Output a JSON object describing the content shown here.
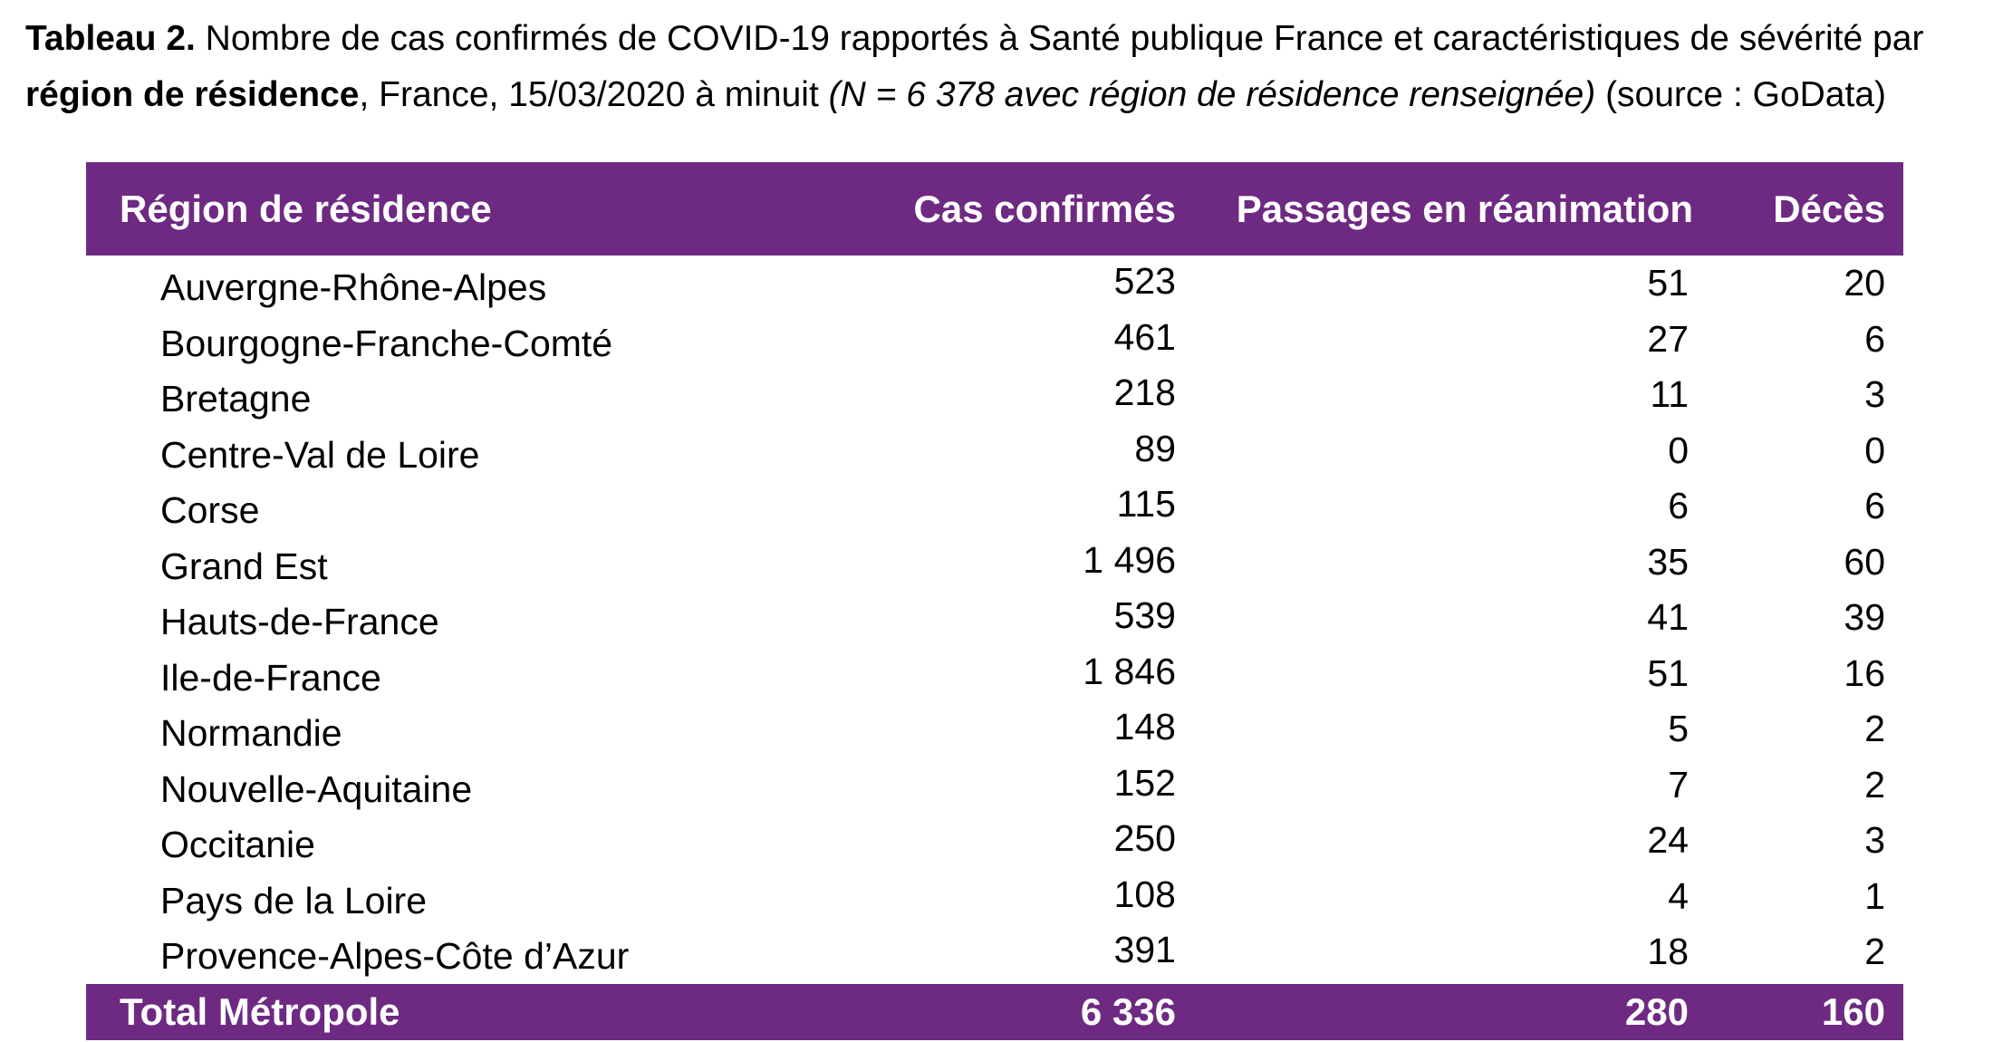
{
  "caption": {
    "label": "Tableau 2.",
    "line1_rest": " Nombre de cas confirmés de COVID-19 rapportés à Santé publique France et caractéristiques de sévérité par",
    "line2_bold": "région de résidence",
    "line2_plain": ", France, 15/03/2020 à minuit ",
    "line2_italic": "(N = 6 378 avec région de résidence renseignée)",
    "line2_source": " (source : GoData)"
  },
  "table": {
    "headers": {
      "region": "Région de résidence",
      "cas": "Cas confirmés",
      "rea": "Passages en réanimation",
      "deces": "Décès"
    },
    "rows": [
      {
        "region": "Auvergne-Rhône-Alpes",
        "cas": "523",
        "rea": "51",
        "deces": "20"
      },
      {
        "region": "Bourgogne-Franche-Comté",
        "cas": "461",
        "rea": "27",
        "deces": "6"
      },
      {
        "region": "Bretagne",
        "cas": "218",
        "rea": "11",
        "deces": "3"
      },
      {
        "region": "Centre-Val de Loire",
        "cas": "89",
        "rea": "0",
        "deces": "0"
      },
      {
        "region": "Corse",
        "cas": "115",
        "rea": "6",
        "deces": "6"
      },
      {
        "region": "Grand Est",
        "cas": "1 496",
        "rea": "35",
        "deces": "60"
      },
      {
        "region": "Hauts-de-France",
        "cas": "539",
        "rea": "41",
        "deces": "39"
      },
      {
        "region": "Ile-de-France",
        "cas": "1 846",
        "rea": "51",
        "deces": "16"
      },
      {
        "region": "Normandie",
        "cas": "148",
        "rea": "5",
        "deces": "2"
      },
      {
        "region": "Nouvelle-Aquitaine",
        "cas": "152",
        "rea": "7",
        "deces": "2"
      },
      {
        "region": "Occitanie",
        "cas": "250",
        "rea": "24",
        "deces": "3"
      },
      {
        "region": "Pays de la Loire",
        "cas": "108",
        "rea": "4",
        "deces": "1"
      },
      {
        "region": "Provence-Alpes-Côte d’Azur",
        "cas": "391",
        "rea": "18",
        "deces": "2"
      }
    ],
    "total": {
      "region": "Total Métropole",
      "cas": "6 336",
      "rea": "280",
      "deces": "160"
    }
  },
  "colors": {
    "header_bg": "#6e2a82",
    "header_text": "#ffffff"
  }
}
